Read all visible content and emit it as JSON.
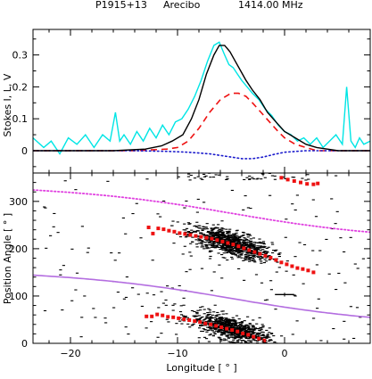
{
  "header": {
    "pulsar": "P1915+13",
    "telescope": "Arecibo",
    "frequency": "1414.00 MHz"
  },
  "colors": {
    "total_intensity": "#000000",
    "fluctuation": "#00e5e5",
    "linear": "#ee1111",
    "circular": "#1a1acc",
    "pa_points": "#ee1111",
    "rvm_curve": "#b46ee0",
    "rvm_offset": "#e040e0"
  },
  "chart_data": [
    {
      "type": "line",
      "panel": "profile",
      "ylabel": "Stokes I, L, V",
      "xlim": [
        -23.5,
        8
      ],
      "ylim": [
        -0.07,
        0.38
      ],
      "xticks": [
        -20,
        -10,
        0
      ],
      "yticks": [
        0,
        0.1,
        0.2,
        0.3
      ],
      "ytick_labels": [
        "0",
        "0.1",
        "0.2",
        "0.3"
      ],
      "series": [
        {
          "key": "I",
          "style": "solid",
          "x": [
            -23.5,
            -20,
            -16,
            -13,
            -11.5,
            -10.5,
            -9.5,
            -8.7,
            -8,
            -7.3,
            -6.6,
            -6.1,
            -5.6,
            -5.1,
            -4.6,
            -4.1,
            -3.6,
            -3,
            -2.3,
            -1.6,
            -0.8,
            0,
            1,
            2,
            3,
            5,
            8
          ],
          "y": [
            0,
            0,
            0,
            0.005,
            0.015,
            0.03,
            0.05,
            0.1,
            0.16,
            0.24,
            0.3,
            0.33,
            0.33,
            0.31,
            0.28,
            0.25,
            0.22,
            0.19,
            0.16,
            0.12,
            0.09,
            0.06,
            0.04,
            0.02,
            0.01,
            0,
            0
          ]
        },
        {
          "key": "fluctuation",
          "style": "solid",
          "x": [
            -23.5,
            -22.5,
            -21.8,
            -21,
            -20.2,
            -19.4,
            -18.6,
            -17.8,
            -17,
            -16.3,
            -15.8,
            -15.4,
            -15,
            -14.4,
            -13.8,
            -13.2,
            -12.6,
            -12,
            -11.4,
            -10.8,
            -10.2,
            -9.6,
            -9,
            -8.4,
            -7.8,
            -7.2,
            -6.6,
            -6.1,
            -5.6,
            -5.2,
            -4.8,
            -4.4,
            -4,
            -3.5,
            -3,
            -2.4,
            -1.8,
            -1.2,
            -0.6,
            0,
            0.6,
            1.2,
            1.8,
            2.4,
            3,
            3.6,
            4.2,
            4.8,
            5.4,
            5.8,
            6.2,
            6.6,
            7,
            7.4,
            8
          ],
          "y": [
            0.04,
            0.01,
            0.03,
            -0.01,
            0.04,
            0.02,
            0.05,
            0.01,
            0.05,
            0.03,
            0.12,
            0.03,
            0.05,
            0.02,
            0.06,
            0.03,
            0.07,
            0.04,
            0.08,
            0.05,
            0.09,
            0.1,
            0.13,
            0.17,
            0.22,
            0.28,
            0.33,
            0.34,
            0.3,
            0.27,
            0.26,
            0.24,
            0.22,
            0.2,
            0.18,
            0.16,
            0.13,
            0.11,
            0.08,
            0.06,
            0.05,
            0.03,
            0.04,
            0.02,
            0.04,
            0.01,
            0.03,
            0.05,
            0.02,
            0.2,
            0.03,
            0.01,
            0.04,
            0.02,
            0.03
          ]
        },
        {
          "key": "L",
          "style": "dashed",
          "x": [
            -23.5,
            -14,
            -11,
            -10,
            -9,
            -8,
            -7,
            -6,
            -5,
            -4.3,
            -3.6,
            -3,
            -2.2,
            -1.4,
            -0.6,
            0,
            1,
            2,
            3,
            8
          ],
          "y": [
            0,
            0,
            0.005,
            0.01,
            0.03,
            0.07,
            0.12,
            0.16,
            0.18,
            0.18,
            0.17,
            0.15,
            0.12,
            0.09,
            0.06,
            0.04,
            0.02,
            0.01,
            0,
            0
          ]
        },
        {
          "key": "V",
          "style": "dotted",
          "x": [
            -23.5,
            -14,
            -11,
            -9,
            -7,
            -6,
            -5,
            -4,
            -3,
            -2,
            -1,
            0,
            2,
            8
          ],
          "y": [
            0,
            0,
            -0.002,
            -0.005,
            -0.01,
            -0.015,
            -0.02,
            -0.025,
            -0.025,
            -0.02,
            -0.012,
            -0.005,
            0,
            0
          ]
        }
      ]
    },
    {
      "type": "scatter",
      "panel": "position-angle",
      "xlabel": "Longitude [ ° ]",
      "ylabel": "Position Angle [ ° ]",
      "xlim": [
        -23.5,
        8
      ],
      "ylim": [
        0,
        360
      ],
      "xticks": [
        -20,
        -10,
        0
      ],
      "xtick_labels": [
        "−20",
        "−10",
        "0"
      ],
      "yticks": [
        0,
        100,
        200,
        300
      ],
      "ytick_labels": [
        "0",
        "100",
        "200",
        "300"
      ],
      "pa_points": [
        {
          "x": -12.7,
          "y": 245
        },
        {
          "x": -12.3,
          "y": 232
        },
        {
          "x": -11.8,
          "y": 243
        },
        {
          "x": -11.3,
          "y": 241
        },
        {
          "x": -10.8,
          "y": 238
        },
        {
          "x": -10.3,
          "y": 236
        },
        {
          "x": -9.8,
          "y": 233
        },
        {
          "x": -9.3,
          "y": 231
        },
        {
          "x": -8.8,
          "y": 229
        },
        {
          "x": -8.3,
          "y": 227
        },
        {
          "x": -7.8,
          "y": 225
        },
        {
          "x": -7.3,
          "y": 223
        },
        {
          "x": -6.8,
          "y": 221
        },
        {
          "x": -6.3,
          "y": 218
        },
        {
          "x": -5.8,
          "y": 215
        },
        {
          "x": -5.3,
          "y": 212
        },
        {
          "x": -4.8,
          "y": 209
        },
        {
          "x": -4.3,
          "y": 205
        },
        {
          "x": -3.8,
          "y": 201
        },
        {
          "x": -3.3,
          "y": 197
        },
        {
          "x": -2.8,
          "y": 193
        },
        {
          "x": -2.3,
          "y": 189
        },
        {
          "x": -1.8,
          "y": 185
        },
        {
          "x": -1.3,
          "y": 181
        },
        {
          "x": -0.8,
          "y": 176
        },
        {
          "x": -0.3,
          "y": 171
        },
        {
          "x": 0.2,
          "y": 167
        },
        {
          "x": 0.7,
          "y": 163
        },
        {
          "x": 1.2,
          "y": 159
        },
        {
          "x": 1.7,
          "y": 157
        },
        {
          "x": 2.2,
          "y": 154
        },
        {
          "x": 2.7,
          "y": 150
        },
        {
          "x": -12.9,
          "y": 57
        },
        {
          "x": -12.4,
          "y": 57
        },
        {
          "x": -11.9,
          "y": 61
        },
        {
          "x": -11.4,
          "y": 59
        },
        {
          "x": -10.9,
          "y": 56
        },
        {
          "x": -10.4,
          "y": 55
        },
        {
          "x": -9.9,
          "y": 53
        },
        {
          "x": -9.4,
          "y": 51
        },
        {
          "x": -8.9,
          "y": 49
        },
        {
          "x": -8.4,
          "y": 47
        },
        {
          "x": -7.9,
          "y": 45
        },
        {
          "x": -7.4,
          "y": 42
        },
        {
          "x": -6.9,
          "y": 40
        },
        {
          "x": -6.4,
          "y": 37
        },
        {
          "x": -5.9,
          "y": 34
        },
        {
          "x": -5.4,
          "y": 31
        },
        {
          "x": -4.9,
          "y": 28
        },
        {
          "x": -4.4,
          "y": 25
        },
        {
          "x": -3.9,
          "y": 21
        },
        {
          "x": -3.4,
          "y": 18
        },
        {
          "x": -2.9,
          "y": 14
        },
        {
          "x": -2.4,
          "y": 10
        },
        {
          "x": -1.9,
          "y": 6
        },
        {
          "x": -0.3,
          "y": 350
        },
        {
          "x": 0.3,
          "y": 346
        },
        {
          "x": 0.9,
          "y": 343
        },
        {
          "x": 1.5,
          "y": 340
        },
        {
          "x": 2.1,
          "y": 337
        },
        {
          "x": 2.7,
          "y": 336
        },
        {
          "x": 3.1,
          "y": 338
        }
      ],
      "rvm": {
        "model": "rotating-vector",
        "inflection_longitude": -5,
        "pa0": 95,
        "offset_track": 180,
        "alpha_deg": 60,
        "beta_deg": 13
      },
      "errorbar": {
        "x": 0,
        "y": 103,
        "xerr": 0.9,
        "yerr": 2
      }
    }
  ]
}
